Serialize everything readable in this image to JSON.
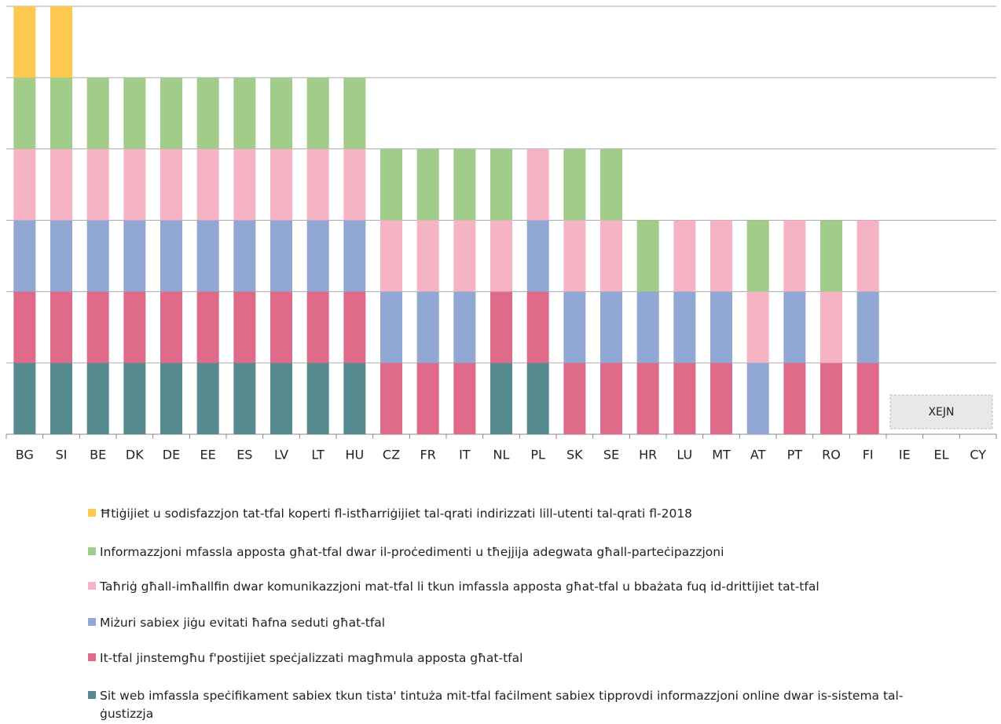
{
  "chart_data": {
    "type": "stacked_bar",
    "categories": [
      "BG",
      "SI",
      "BE",
      "DK",
      "DE",
      "EE",
      "ES",
      "LV",
      "LT",
      "HU",
      "CZ",
      "FR",
      "IT",
      "NL",
      "PL",
      "SK",
      "SE",
      "HR",
      "LU",
      "MT",
      "AT",
      "PT",
      "RO",
      "FI",
      "IE",
      "EL",
      "CY"
    ],
    "series": [
      {
        "name": "Ħtiġijiet u sodisfazzjon tat-tfal koperti fl-istħarriġijiet tal-qrati indirizzati lill-utenti tal-qrati fl-2018",
        "color": "#fdc84f",
        "values": [
          1,
          1,
          0,
          0,
          0,
          0,
          0,
          0,
          0,
          0,
          0,
          0,
          0,
          0,
          0,
          0,
          0,
          0,
          0,
          0,
          0,
          0,
          0,
          0,
          0,
          0,
          0
        ]
      },
      {
        "name": "Informazzjoni mfassla apposta għat-tfal dwar il-proċedimenti u tħejjija adegwata għall-parteċipazzjoni",
        "color": "#a2cc8a",
        "values": [
          1,
          1,
          1,
          1,
          1,
          1,
          1,
          1,
          1,
          1,
          1,
          1,
          1,
          1,
          0,
          1,
          1,
          1,
          0,
          0,
          1,
          0,
          1,
          0,
          0,
          0,
          0
        ]
      },
      {
        "name": "Taħriġ għall-imħallfin dwar komunikazzjoni mat-tfal li tkun imfassla apposta għat-tfal u bbażata fuq id-drittijiet tat-tfal",
        "color": "#f6b3c4",
        "values": [
          1,
          1,
          1,
          1,
          1,
          1,
          1,
          1,
          1,
          1,
          1,
          1,
          1,
          1,
          1,
          1,
          1,
          0,
          1,
          1,
          1,
          1,
          1,
          1,
          0,
          0,
          0
        ]
      },
      {
        "name": "Miżuri sabiex jiġu evitati ħafna seduti għat-tfal",
        "color": "#91a8d5",
        "values": [
          1,
          1,
          1,
          1,
          1,
          1,
          1,
          1,
          1,
          1,
          1,
          1,
          1,
          0,
          1,
          1,
          1,
          1,
          1,
          1,
          1,
          1,
          0,
          1,
          0,
          0,
          0
        ]
      },
      {
        "name": "It-tfal jinstemgħu f'postijiet speċjalizzati magħmula apposta għat-tfal",
        "color": "#e06a8a",
        "values": [
          1,
          1,
          1,
          1,
          1,
          1,
          1,
          1,
          1,
          1,
          1,
          1,
          1,
          1,
          1,
          1,
          1,
          1,
          1,
          1,
          0,
          1,
          1,
          1,
          0,
          0,
          0
        ]
      },
      {
        "name": "Sit web imfassla speċifikament sabiex tkun tista' tintuża mit-tfal faċilment sabiex tipprovdi informazzjoni online dwar is-sistema tal-ġustizzja",
        "color": "#558a8e",
        "values": [
          1,
          1,
          1,
          1,
          1,
          1,
          1,
          1,
          1,
          1,
          0,
          0,
          0,
          1,
          1,
          0,
          0,
          0,
          0,
          0,
          0,
          0,
          0,
          0,
          0,
          0,
          0
        ]
      }
    ],
    "annotations": [
      "XEJN"
    ],
    "ylim": [
      0,
      6
    ],
    "yticks": [
      0,
      1,
      2,
      3,
      4,
      5,
      6
    ],
    "grid": true
  }
}
